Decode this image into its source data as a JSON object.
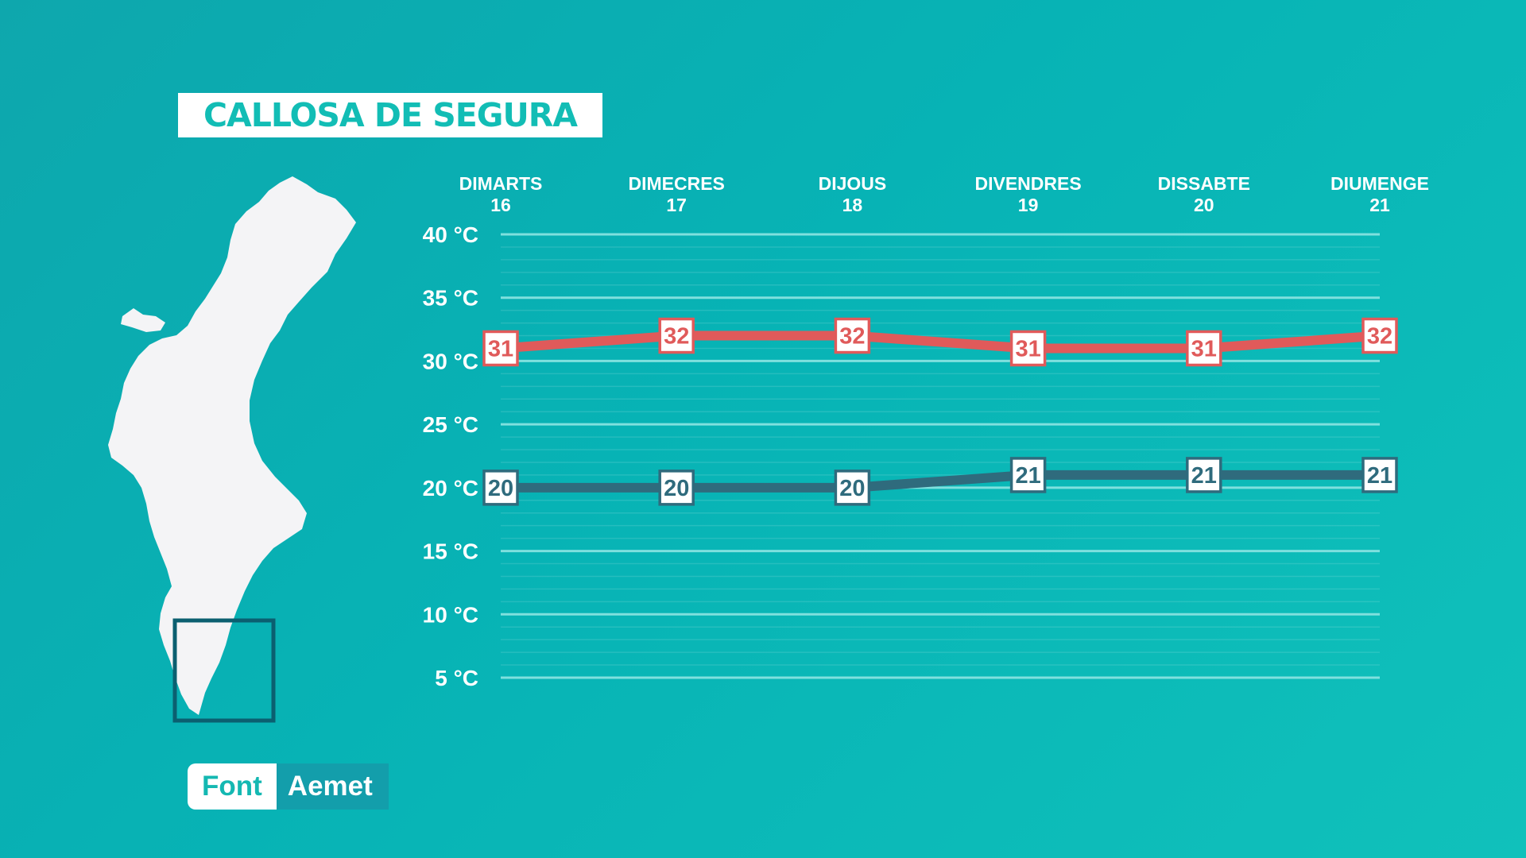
{
  "title": "CALLOSA DE SEGURA",
  "source": {
    "label": "Font",
    "value": "Aemet"
  },
  "colors": {
    "background": "#0fb2b4",
    "max_series": "#e05a5a",
    "min_series": "#2f6b7d",
    "gridline": "#7fe0de"
  },
  "icons": {
    "map": "valencian-community-map-icon",
    "highlight": "region-highlight-box"
  },
  "chart_data": {
    "type": "line",
    "categories": [
      {
        "day": "DIMARTS",
        "date": "16"
      },
      {
        "day": "DIMECRES",
        "date": "17"
      },
      {
        "day": "DIJOUS",
        "date": "18"
      },
      {
        "day": "DIVENDRES",
        "date": "19"
      },
      {
        "day": "DISSABTE",
        "date": "20"
      },
      {
        "day": "DIUMENGE",
        "date": "21"
      }
    ],
    "series": [
      {
        "values": [
          31,
          32,
          32,
          31,
          31,
          32
        ],
        "color": "#e05a5a"
      },
      {
        "values": [
          20,
          20,
          20,
          21,
          21,
          21
        ],
        "color": "#2f6b7d"
      }
    ],
    "y_ticks": [
      "40 °C",
      "35 °C",
      "30 °C",
      "25 °C",
      "20 °C",
      "15 °C",
      "10 °C",
      "5 °C"
    ],
    "y_tick_values": [
      40,
      35,
      30,
      25,
      20,
      15,
      10,
      5
    ],
    "ylim": [
      5,
      40
    ],
    "grid": true,
    "legend": "none"
  }
}
